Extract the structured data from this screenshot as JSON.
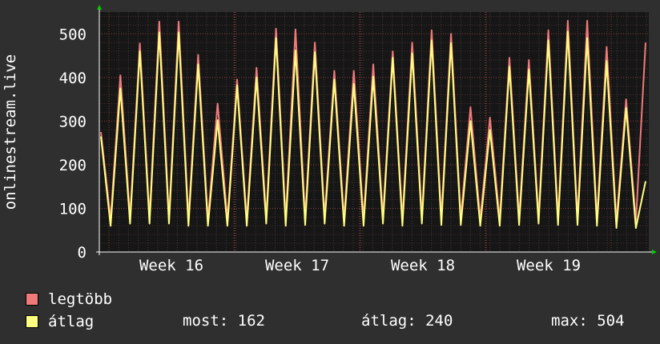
{
  "chart_data": {
    "type": "line",
    "ylabel": "onlinestream.live",
    "ylim": [
      0,
      550
    ],
    "yticks": [
      0,
      100,
      200,
      300,
      400,
      500
    ],
    "xticks": [
      "Week 16",
      "Week 17",
      "Week 18",
      "Week 19"
    ],
    "grid": true,
    "legend_position": "bottom-left",
    "series": [
      {
        "name": "legtöbb",
        "color": "#f07a7a",
        "values": [
          275,
          75,
          405,
          80,
          478,
          80,
          528,
          80,
          528,
          75,
          452,
          75,
          340,
          75,
          395,
          75,
          422,
          80,
          512,
          75,
          510,
          78,
          480,
          80,
          415,
          75,
          415,
          75,
          430,
          80,
          460,
          75,
          480,
          80,
          508,
          78,
          500,
          78,
          332,
          75,
          308,
          75,
          445,
          78,
          440,
          80,
          508,
          78,
          530,
          78,
          530,
          75,
          470,
          70,
          350,
          70,
          480
        ]
      },
      {
        "name": "átlag",
        "color": "#ffff80",
        "values": [
          265,
          60,
          375,
          65,
          460,
          65,
          503,
          65,
          503,
          60,
          430,
          60,
          302,
          60,
          382,
          60,
          400,
          65,
          490,
          60,
          462,
          62,
          458,
          65,
          395,
          60,
          385,
          60,
          402,
          65,
          445,
          60,
          455,
          65,
          485,
          62,
          479,
          62,
          300,
          60,
          280,
          60,
          425,
          62,
          418,
          65,
          485,
          62,
          505,
          62,
          490,
          60,
          438,
          55,
          330,
          55,
          162
        ]
      }
    ]
  },
  "legend": [
    {
      "label": "legtöbb",
      "color": "#f07a7a"
    },
    {
      "label": "átlag",
      "color": "#ffff80"
    }
  ],
  "stats": {
    "current": "most: 162",
    "average": "átlag: 240",
    "maximum": "max: 504"
  }
}
